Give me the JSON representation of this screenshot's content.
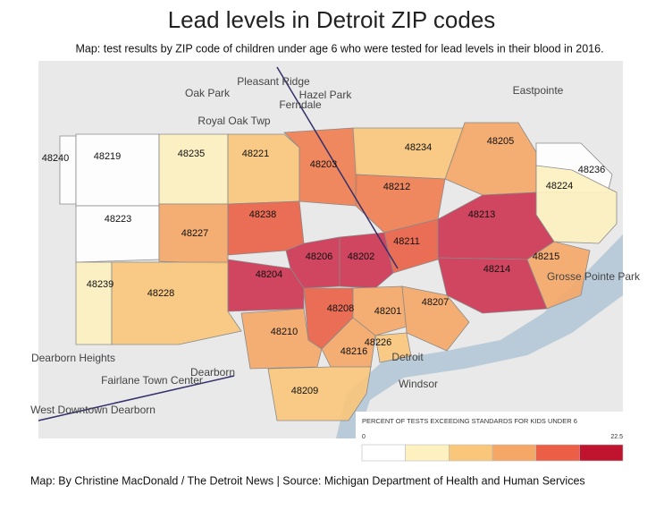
{
  "header": {
    "title": "Lead levels in Detroit ZIP codes",
    "subtitle": "Map: test results by ZIP code of children under age 6 who were tested for lead levels in their blood in 2016."
  },
  "zips": [
    {
      "label": "48240",
      "color": "#ffffff"
    },
    {
      "label": "48219",
      "color": "#ffffff"
    },
    {
      "label": "48235",
      "color": "#fdf1bf"
    },
    {
      "label": "48221",
      "color": "#f9c77a"
    },
    {
      "label": "48203",
      "color": "#ef7d4f"
    },
    {
      "label": "48234",
      "color": "#f9c77a"
    },
    {
      "label": "48205",
      "color": "#f5a766"
    },
    {
      "label": "48236",
      "color": "#ffffff"
    },
    {
      "label": "48224",
      "color": "#fdf1bf"
    },
    {
      "label": "48223",
      "color": "#ffffff"
    },
    {
      "label": "48227",
      "color": "#f5a766"
    },
    {
      "label": "48238",
      "color": "#ea5f45"
    },
    {
      "label": "48212",
      "color": "#ef7d4f"
    },
    {
      "label": "48213",
      "color": "#cd3350"
    },
    {
      "label": "48211",
      "color": "#ea5f45"
    },
    {
      "label": "48206",
      "color": "#cd3350"
    },
    {
      "label": "48202",
      "color": "#cd3350"
    },
    {
      "label": "48204",
      "color": "#cd3350"
    },
    {
      "label": "48214",
      "color": "#cd3350"
    },
    {
      "label": "48215",
      "color": "#f5a766"
    },
    {
      "label": "48239",
      "color": "#fdf1bf"
    },
    {
      "label": "48228",
      "color": "#f9c77a"
    },
    {
      "label": "48208",
      "color": "#ea5f45"
    },
    {
      "label": "48201",
      "color": "#f5a766"
    },
    {
      "label": "48207",
      "color": "#f5a766"
    },
    {
      "label": "48210",
      "color": "#f5a766"
    },
    {
      "label": "48216",
      "color": "#f5a766"
    },
    {
      "label": "48226",
      "color": "#f9c77a"
    },
    {
      "label": "48209",
      "color": "#f9c77a"
    }
  ],
  "places": [
    "Oak Park",
    "Pleasant Ridge",
    "Hazel Park",
    "Ferndale",
    "Eastpointe",
    "Royal Oak Twp",
    "Dearborn Heights",
    "Dearborn",
    "Windsor",
    "Detroit",
    "Fairlane Town Center",
    "West Downtown Dearborn",
    "Grosse Pointe Park"
  ],
  "legend": {
    "title": "PERCENT OF TESTS EXCEEDING STANDARDS FOR KIDS UNDER 6",
    "min": "0",
    "max": "22.5",
    "colors": [
      "#ffffff",
      "#fdf1bf",
      "#f9c77a",
      "#f5a766",
      "#ea5f45",
      "#c0142e"
    ]
  },
  "footer": "Map: By Christine MacDonald / The Detroit News | Source: Michigan Department of Health and Human Services"
}
